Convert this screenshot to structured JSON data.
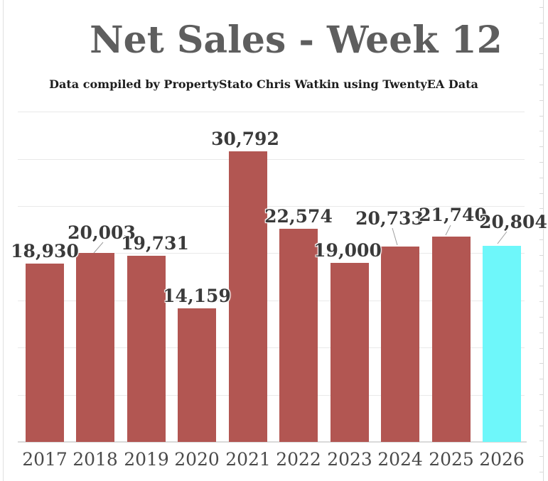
{
  "header": {
    "title": "Net Sales - Week 12",
    "subtitle": "Data compiled by PropertyStato Chris Watkin using TwentyEA Data"
  },
  "chart_data": {
    "type": "bar",
    "title": "Net Sales - Week 12",
    "subtitle": "Data compiled by PropertyStato Chris Watkin using TwentyEA Data",
    "categories": [
      "2017",
      "2018",
      "2019",
      "2020",
      "2021",
      "2022",
      "2023",
      "2024",
      "2025",
      "2026"
    ],
    "values": [
      18930,
      20003,
      19731,
      14159,
      30792,
      22574,
      19000,
      20733,
      21740,
      20804
    ],
    "value_labels": [
      "18,930",
      "20,003",
      "19,731",
      "14,159",
      "30,792",
      "22,574",
      "19,000",
      "20,733",
      "21,740",
      "20,804"
    ],
    "xlabel": "",
    "ylabel": "",
    "ylim": [
      0,
      35000
    ],
    "gridline_step": 5000,
    "grid": true,
    "legend": false,
    "colors": {
      "bar": "#b25652",
      "highlight_bar": "#6ef7fa",
      "title_text": "#5e5e5e",
      "subtitle_text": "#1d1d1d",
      "value_label_text": "#3a3a3a",
      "axis_label_text": "#4a4a4a",
      "gridline": "#e9e9e9",
      "leader_line": "#9e9e9e"
    },
    "highlight_index": 9
  }
}
